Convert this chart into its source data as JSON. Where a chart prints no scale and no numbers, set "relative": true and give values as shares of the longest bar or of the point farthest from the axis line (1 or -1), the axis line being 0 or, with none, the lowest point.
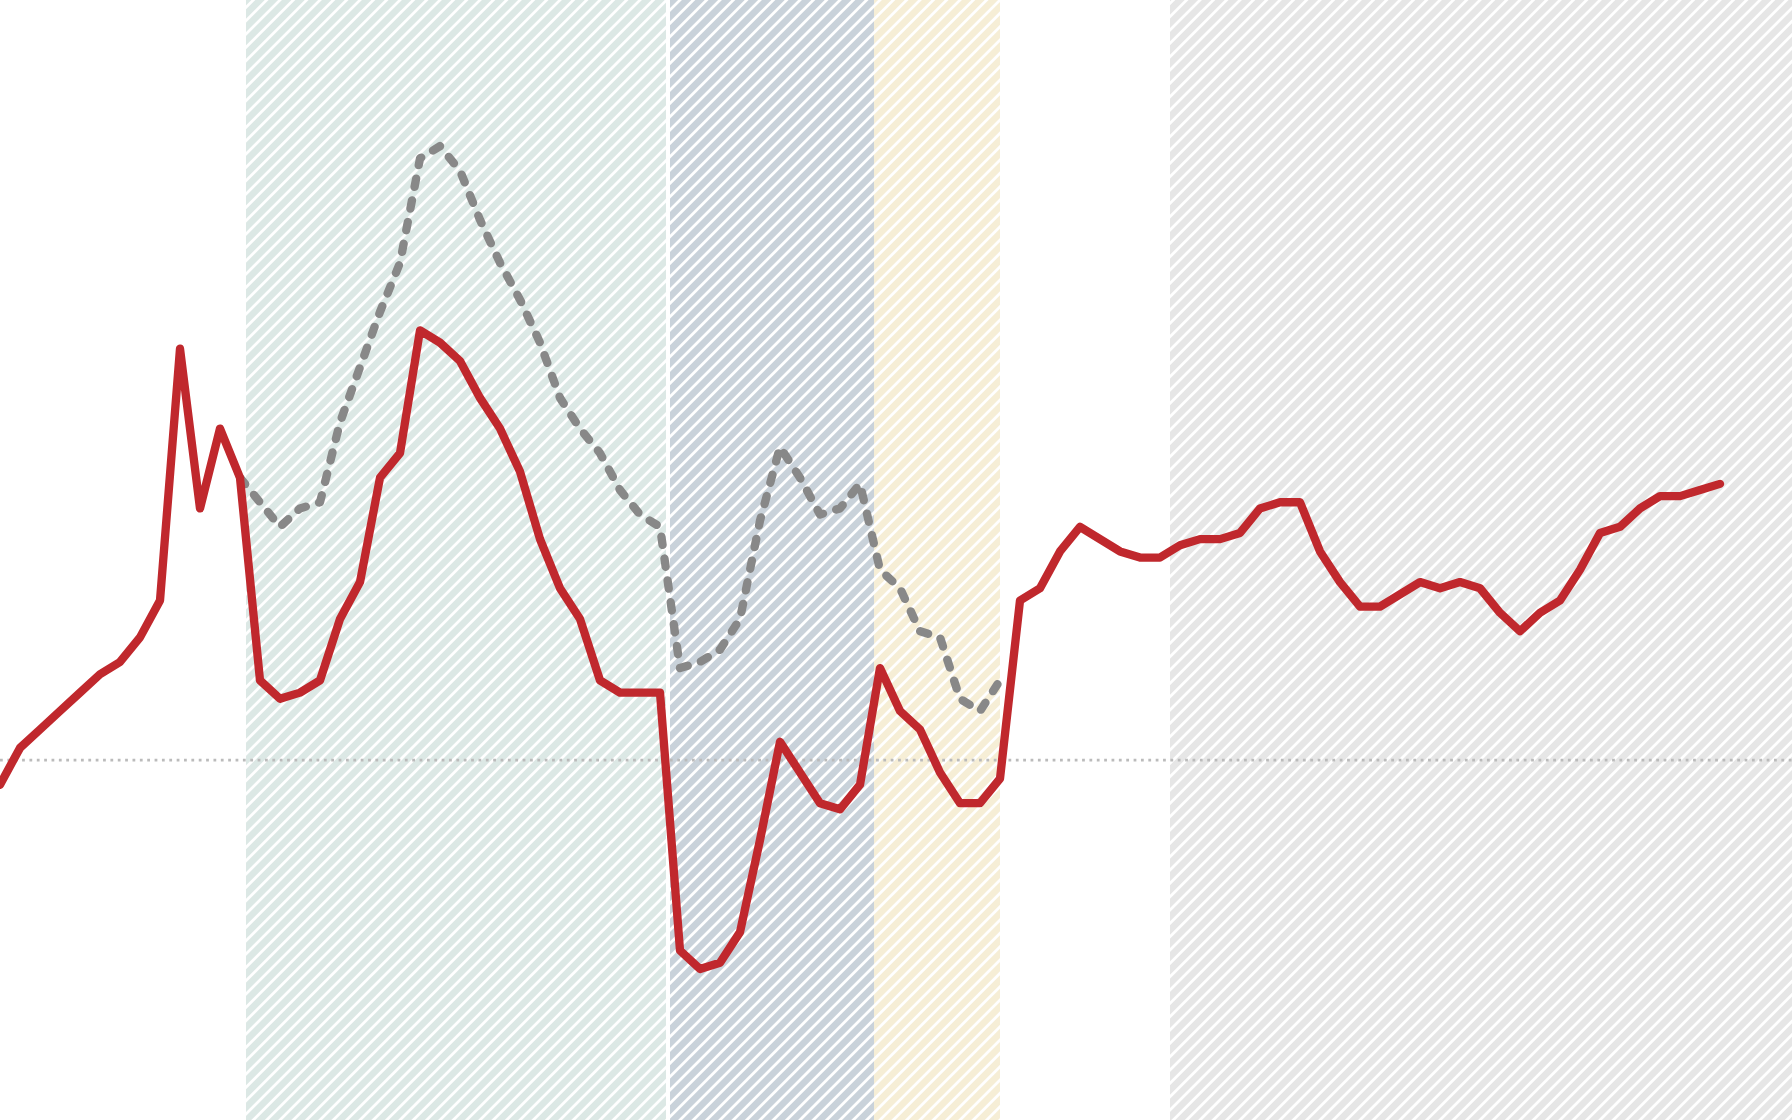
{
  "chart_data": {
    "type": "line",
    "relative": true,
    "ref_lines": [
      {
        "axis": "y",
        "value": 0,
        "color": "#bbbbbb",
        "line_style": "dotted"
      }
    ],
    "categories": [
      null,
      null,
      null,
      null,
      null,
      null,
      null,
      null,
      null,
      null,
      null,
      null,
      null,
      null,
      null,
      null,
      null,
      null,
      null,
      null,
      null,
      null,
      null,
      null,
      null,
      null,
      null,
      null,
      null,
      null,
      null,
      null,
      null,
      null,
      null,
      null,
      null,
      null,
      null,
      null,
      null,
      null,
      null,
      null,
      null,
      null,
      null,
      null,
      null,
      null,
      null,
      null,
      null,
      null,
      null,
      null,
      null,
      null,
      null,
      null,
      null,
      null,
      null,
      null,
      null,
      null,
      null,
      null,
      null,
      null,
      null,
      null,
      null,
      null,
      null,
      null,
      null,
      null,
      null,
      null,
      null,
      null,
      null,
      null,
      null,
      null,
      null
    ],
    "series": [
      {
        "color": "#888888",
        "line_style": "dotted",
        "values": [
          null,
          null,
          null,
          null,
          null,
          null,
          null,
          null,
          null,
          null,
          null,
          null,
          0.46,
          0.42,
          0.38,
          0.41,
          0.42,
          0.55,
          0.64,
          0.73,
          0.81,
          0.98,
          1.0,
          0.96,
          0.88,
          0.81,
          0.75,
          0.68,
          0.59,
          0.54,
          0.5,
          0.44,
          0.4,
          0.38,
          0.15,
          0.16,
          0.18,
          0.23,
          0.39,
          0.51,
          0.46,
          0.4,
          0.41,
          0.45,
          0.31,
          0.28,
          0.21,
          0.2,
          0.1,
          0.08,
          0.13,
          null,
          null,
          null,
          null,
          null,
          null,
          null,
          null,
          null,
          null,
          null,
          null,
          null,
          null,
          null,
          null,
          null,
          null,
          null,
          null,
          null,
          null,
          null,
          null,
          null,
          null,
          null,
          null,
          null,
          null,
          null,
          null,
          null,
          null,
          null,
          null
        ]
      },
      {
        "color": "#c0282d",
        "line_style": "solid",
        "values": [
          -0.04,
          0.02,
          0.05,
          0.08,
          0.11,
          0.14,
          0.16,
          0.2,
          0.26,
          0.67,
          0.41,
          0.54,
          0.46,
          0.13,
          0.1,
          0.11,
          0.13,
          0.23,
          0.29,
          0.46,
          0.5,
          0.7,
          0.68,
          0.65,
          0.59,
          0.54,
          0.47,
          0.36,
          0.28,
          0.23,
          0.13,
          0.11,
          0.11,
          0.11,
          -0.31,
          -0.34,
          -0.33,
          -0.28,
          -0.13,
          0.03,
          -0.02,
          -0.07,
          -0.08,
          -0.04,
          0.15,
          0.08,
          0.05,
          -0.02,
          -0.07,
          -0.07,
          -0.03,
          0.26,
          0.28,
          0.34,
          0.38,
          0.36,
          0.34,
          0.33,
          0.33,
          0.35,
          0.36,
          0.36,
          0.37,
          0.41,
          0.42,
          0.42,
          0.34,
          0.29,
          0.25,
          0.25,
          0.27,
          0.29,
          0.28,
          0.29,
          0.28,
          0.24,
          0.21,
          0.24,
          0.26,
          0.31,
          0.37,
          0.38,
          0.41,
          0.43,
          0.43,
          0.44,
          0.45
        ]
      }
    ]
  }
}
